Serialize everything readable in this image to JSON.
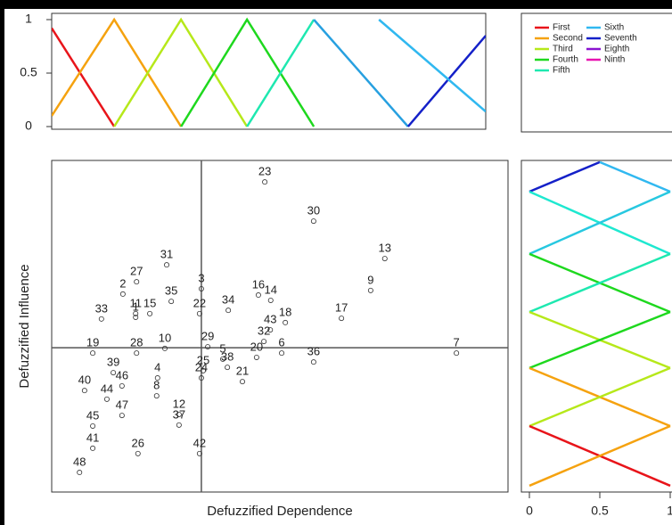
{
  "chart_data": [
    {
      "type": "line",
      "xlim": [
        0,
        100
      ],
      "ylim": [
        0,
        1
      ],
      "yticks": [
        0,
        0.5,
        1
      ],
      "series": [
        {
          "color": "#e8141a",
          "x": [
            0,
            14.4
          ],
          "values": [
            0.92,
            0
          ]
        },
        {
          "color": "#f5a20f",
          "x": [
            0,
            14.4,
            29.8
          ],
          "values": [
            0.1,
            1,
            0
          ]
        },
        {
          "color": "#b6e81a",
          "x": [
            14.4,
            29.8,
            45.0
          ],
          "values": [
            0,
            1,
            0
          ]
        },
        {
          "color": "#1ed81e",
          "x": [
            29.8,
            45.0,
            60.4
          ],
          "values": [
            0,
            1,
            0
          ]
        },
        {
          "color": "#1ee8b0",
          "x": [
            45.0,
            60.4
          ],
          "values": [
            0,
            1
          ]
        },
        {
          "color": "#27a0e0",
          "x": [
            60.4,
            82.1
          ],
          "values": [
            1,
            0
          ]
        },
        {
          "color": "#1420c8",
          "x": [
            82.1,
            100
          ],
          "values": [
            0,
            0.85
          ]
        },
        {
          "color": "#30b8f0",
          "x": [
            75.4,
            100
          ],
          "values": [
            1,
            0.14
          ]
        }
      ],
      "legend": [
        {
          "name": "First",
          "color": "#e8141a"
        },
        {
          "name": "Second",
          "color": "#f5a20f"
        },
        {
          "name": "Third",
          "color": "#b6e81a"
        },
        {
          "name": "Fourth",
          "color": "#1ed81e"
        },
        {
          "name": "Fifth",
          "color": "#1ee8b0"
        },
        {
          "name": "Sixth",
          "color": "#30b8f0"
        },
        {
          "name": "Seventh",
          "color": "#1420c8"
        },
        {
          "name": "Eighth",
          "color": "#8a14d0"
        },
        {
          "name": "Ninth",
          "color": "#e814b0"
        }
      ]
    },
    {
      "type": "scatter",
      "xlabel": "Defuzzified Dependence",
      "ylabel": "Defuzzified Influence",
      "xlim": [
        0,
        100
      ],
      "ylim": [
        0,
        100
      ],
      "vline": 32.8,
      "hline": 43.5,
      "labels": [
        "23",
        "30",
        "13",
        "31",
        "27",
        "2",
        "3",
        "35",
        "16",
        "14",
        "9",
        "34",
        "22",
        "33",
        "11",
        "1",
        "15",
        "17",
        "43",
        "18",
        "32",
        "6",
        "29",
        "20",
        "36",
        "7",
        "19",
        "28",
        "10",
        "5",
        "38",
        "25",
        "24",
        "21",
        "39",
        "4",
        "46",
        "8",
        "40",
        "44",
        "47",
        "12",
        "37",
        "45",
        "41",
        "26",
        "42",
        "48"
      ],
      "x": [
        46.7,
        57.4,
        73.0,
        25.2,
        18.6,
        15.6,
        32.8,
        26.2,
        45.3,
        48.0,
        69.9,
        38.7,
        32.4,
        10.9,
        18.4,
        18.4,
        21.5,
        63.5,
        47.9,
        51.2,
        46.5,
        50.4,
        34.2,
        44.9,
        57.4,
        88.7,
        9.0,
        18.6,
        24.8,
        37.5,
        38.5,
        33.2,
        32.8,
        41.8,
        13.5,
        23.2,
        15.4,
        23.0,
        7.2,
        12.1,
        15.4,
        27.9,
        27.9,
        9.0,
        9.0,
        18.9,
        32.4,
        6.1
      ],
      "values": [
        93.5,
        81.7,
        70.4,
        68.5,
        63.4,
        59.7,
        61.3,
        57.5,
        59.4,
        57.8,
        60.8,
        54.8,
        53.8,
        52.2,
        53.8,
        52.7,
        53.8,
        52.4,
        48.9,
        51.1,
        45.4,
        41.9,
        43.8,
        40.6,
        39.2,
        41.9,
        41.9,
        41.9,
        43.3,
        40.1,
        37.6,
        36.6,
        34.4,
        33.3,
        36.0,
        34.4,
        32.0,
        29.0,
        30.6,
        28.0,
        23.1,
        23.4,
        20.2,
        19.9,
        13.2,
        11.6,
        11.6,
        5.9
      ]
    },
    {
      "type": "line",
      "xlim": [
        0,
        1
      ],
      "ylim": [
        0,
        100
      ],
      "xticks": [
        0,
        0.5,
        1
      ],
      "series": [
        {
          "color": "#1420c8",
          "x": [
            0,
            0.5
          ],
          "values": [
            90.6,
            99.5
          ]
        },
        {
          "color": "#30b8f0",
          "x": [
            0.5,
            1
          ],
          "values": [
            99.5,
            90.6
          ]
        },
        {
          "color": "#1ee8d0",
          "x": [
            0,
            1
          ],
          "values": [
            90.6,
            71.8
          ]
        },
        {
          "color": "#27c8e0",
          "x": [
            1,
            0
          ],
          "values": [
            90.6,
            71.8
          ]
        },
        {
          "color": "#1ed81e",
          "x": [
            0,
            1
          ],
          "values": [
            71.8,
            54.3
          ]
        },
        {
          "color": "#1ee8b0",
          "x": [
            1,
            0
          ],
          "values": [
            71.8,
            54.3
          ]
        },
        {
          "color": "#b6e81a",
          "x": [
            0,
            1
          ],
          "values": [
            54.3,
            37.4
          ]
        },
        {
          "color": "#1ed81e",
          "x": [
            1,
            0
          ],
          "values": [
            54.3,
            37.4
          ]
        },
        {
          "color": "#f5a20f",
          "x": [
            0,
            1
          ],
          "values": [
            37.4,
            19.9
          ]
        },
        {
          "color": "#b6e81a",
          "x": [
            1,
            0
          ],
          "values": [
            37.4,
            19.9
          ]
        },
        {
          "color": "#e8141a",
          "x": [
            0,
            1
          ],
          "values": [
            19.9,
            1.9
          ]
        },
        {
          "color": "#f5a20f",
          "x": [
            1,
            0
          ],
          "values": [
            19.9,
            1.9
          ]
        }
      ]
    }
  ]
}
